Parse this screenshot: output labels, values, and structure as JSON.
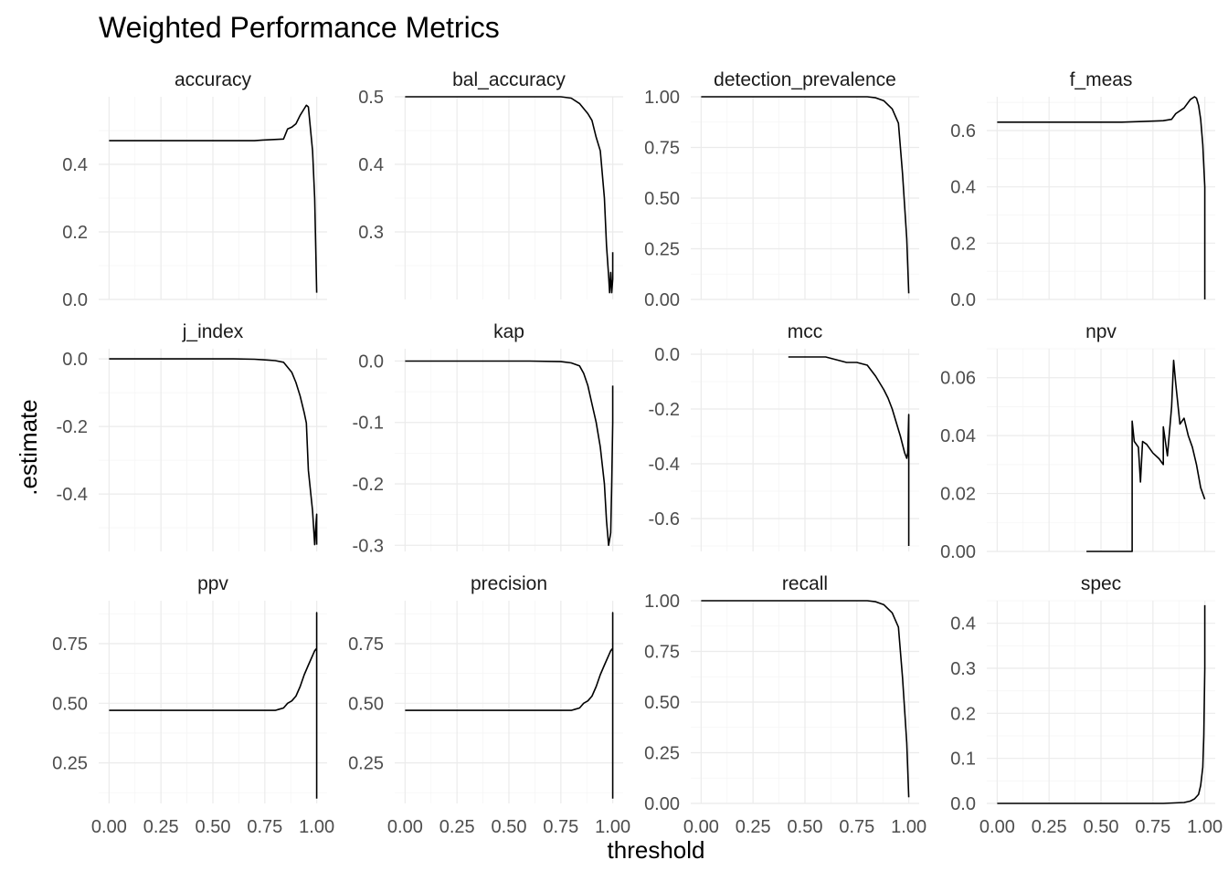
{
  "chart_data": {
    "type": "line",
    "title": "Weighted Performance Metrics",
    "xlabel": "threshold",
    "ylabel": ".estimate",
    "grid": true,
    "legend": "none",
    "x_ticks": [
      "0.00",
      "0.25",
      "0.50",
      "0.75",
      "1.00"
    ],
    "x_tick_values": [
      0,
      0.25,
      0.5,
      0.75,
      1
    ],
    "x_tick_labels_visible_on": [
      "ppv",
      "precision",
      "recall",
      "spec"
    ],
    "panels": [
      {
        "name": "accuracy",
        "ylim": [
          0,
          0.6
        ],
        "y_tick_values": [
          0,
          0.2,
          0.4
        ],
        "y_ticks": [
          "0.0",
          "0.2",
          "0.4"
        ],
        "x": [
          0,
          0.2,
          0.4,
          0.6,
          0.7,
          0.74,
          0.84,
          0.86,
          0.88,
          0.9,
          0.92,
          0.94,
          0.95,
          0.96,
          0.98,
          0.99,
          1.0
        ],
        "y": [
          0.47,
          0.47,
          0.47,
          0.47,
          0.47,
          0.472,
          0.475,
          0.505,
          0.51,
          0.52,
          0.545,
          0.565,
          0.575,
          0.57,
          0.44,
          0.3,
          0.02
        ]
      },
      {
        "name": "bal_accuracy",
        "ylim": [
          0.2,
          0.5
        ],
        "y_tick_values": [
          0.3,
          0.4,
          0.5
        ],
        "y_ticks": [
          "0.3",
          "0.4",
          "0.5"
        ],
        "x": [
          0,
          0.2,
          0.4,
          0.6,
          0.75,
          0.8,
          0.84,
          0.88,
          0.9,
          0.92,
          0.94,
          0.96,
          0.97,
          0.98,
          0.985,
          0.99,
          0.995,
          1.0,
          1.0
        ],
        "y": [
          0.5,
          0.5,
          0.5,
          0.5,
          0.5,
          0.498,
          0.49,
          0.475,
          0.465,
          0.44,
          0.42,
          0.35,
          0.28,
          0.235,
          0.21,
          0.24,
          0.21,
          0.23,
          0.27
        ]
      },
      {
        "name": "detection_prevalence",
        "ylim": [
          0,
          1
        ],
        "y_tick_values": [
          0,
          0.25,
          0.5,
          0.75,
          1
        ],
        "y_ticks": [
          "0.00",
          "0.25",
          "0.50",
          "0.75",
          "1.00"
        ],
        "x": [
          0,
          0.2,
          0.4,
          0.6,
          0.8,
          0.84,
          0.88,
          0.92,
          0.95,
          0.97,
          0.99,
          1.0
        ],
        "y": [
          1.0,
          1.0,
          1.0,
          1.0,
          1.0,
          0.995,
          0.98,
          0.94,
          0.87,
          0.62,
          0.3,
          0.03
        ]
      },
      {
        "name": "f_meas",
        "ylim": [
          0,
          0.72
        ],
        "y_tick_values": [
          0,
          0.2,
          0.4,
          0.6
        ],
        "y_ticks": [
          "0.0",
          "0.2",
          "0.4",
          "0.6"
        ],
        "x": [
          0,
          0.2,
          0.4,
          0.6,
          0.7,
          0.8,
          0.84,
          0.86,
          0.9,
          0.93,
          0.95,
          0.96,
          0.97,
          0.98,
          0.99,
          1.0,
          1.0
        ],
        "y": [
          0.63,
          0.63,
          0.63,
          0.63,
          0.632,
          0.635,
          0.64,
          0.66,
          0.68,
          0.71,
          0.72,
          0.715,
          0.69,
          0.64,
          0.55,
          0.4,
          0.0
        ]
      },
      {
        "name": "j_index",
        "ylim": [
          -0.57,
          0.03
        ],
        "y_tick_values": [
          -0.4,
          -0.2,
          0
        ],
        "y_ticks": [
          "-0.4",
          "-0.2",
          "0.0"
        ],
        "x": [
          0,
          0.2,
          0.4,
          0.6,
          0.7,
          0.75,
          0.8,
          0.84,
          0.88,
          0.9,
          0.92,
          0.94,
          0.95,
          0.96,
          0.98,
          0.99,
          0.995,
          1.0,
          1.0
        ],
        "y": [
          0.0,
          0.0,
          0.0,
          0.0,
          -0.001,
          -0.003,
          -0.005,
          -0.01,
          -0.04,
          -0.07,
          -0.11,
          -0.16,
          -0.19,
          -0.33,
          -0.45,
          -0.55,
          -0.5,
          -0.46,
          -0.55
        ]
      },
      {
        "name": "kap",
        "ylim": [
          -0.31,
          0.02
        ],
        "y_tick_values": [
          -0.3,
          -0.2,
          -0.1,
          0
        ],
        "y_ticks": [
          "-0.3",
          "-0.2",
          "-0.1",
          "0.0"
        ],
        "x": [
          0,
          0.2,
          0.4,
          0.6,
          0.75,
          0.8,
          0.84,
          0.86,
          0.88,
          0.9,
          0.92,
          0.94,
          0.96,
          0.97,
          0.98,
          0.99,
          0.995,
          1.0,
          1.0
        ],
        "y": [
          0.0,
          0.0,
          0.0,
          0.0,
          -0.001,
          -0.003,
          -0.008,
          -0.02,
          -0.04,
          -0.07,
          -0.1,
          -0.14,
          -0.2,
          -0.26,
          -0.3,
          -0.28,
          -0.2,
          -0.1,
          -0.04
        ]
      },
      {
        "name": "mcc",
        "ylim": [
          -0.72,
          0.02
        ],
        "y_tick_values": [
          -0.6,
          -0.4,
          -0.2,
          0
        ],
        "y_ticks": [
          "-0.6",
          "-0.4",
          "-0.2",
          "0.0"
        ],
        "x": [
          0.42,
          0.5,
          0.6,
          0.65,
          0.7,
          0.75,
          0.8,
          0.84,
          0.88,
          0.9,
          0.92,
          0.94,
          0.96,
          0.97,
          0.98,
          0.99,
          0.995,
          1.0,
          1.0,
          1.0
        ],
        "y": [
          -0.01,
          -0.01,
          -0.01,
          -0.02,
          -0.03,
          -0.03,
          -0.04,
          -0.08,
          -0.13,
          -0.16,
          -0.2,
          -0.25,
          -0.3,
          -0.33,
          -0.36,
          -0.38,
          -0.36,
          -0.22,
          -0.4,
          -0.7
        ]
      },
      {
        "name": "npv",
        "ylim": [
          0,
          0.07
        ],
        "y_tick_values": [
          0,
          0.02,
          0.04,
          0.06
        ],
        "y_ticks": [
          "0.00",
          "0.02",
          "0.04",
          "0.06"
        ],
        "x": [
          0.43,
          0.5,
          0.6,
          0.65,
          0.65,
          0.66,
          0.68,
          0.69,
          0.7,
          0.72,
          0.75,
          0.78,
          0.8,
          0.8,
          0.82,
          0.84,
          0.85,
          0.86,
          0.88,
          0.9,
          0.92,
          0.94,
          0.96,
          0.98,
          1.0
        ],
        "y": [
          0.0,
          0.0,
          0.0,
          0.0,
          0.045,
          0.038,
          0.036,
          0.024,
          0.038,
          0.037,
          0.034,
          0.032,
          0.03,
          0.043,
          0.033,
          0.05,
          0.066,
          0.058,
          0.044,
          0.046,
          0.04,
          0.036,
          0.03,
          0.022,
          0.018
        ]
      },
      {
        "name": "ppv",
        "ylim": [
          0.08,
          0.93
        ],
        "y_tick_values": [
          0.25,
          0.5,
          0.75
        ],
        "y_ticks": [
          "0.25",
          "0.50",
          "0.75"
        ],
        "x": [
          0,
          0.2,
          0.4,
          0.6,
          0.7,
          0.8,
          0.82,
          0.84,
          0.86,
          0.88,
          0.9,
          0.92,
          0.94,
          0.96,
          0.98,
          0.99,
          1.0,
          1.0,
          1.0
        ],
        "y": [
          0.47,
          0.47,
          0.47,
          0.47,
          0.47,
          0.47,
          0.475,
          0.48,
          0.5,
          0.51,
          0.53,
          0.57,
          0.62,
          0.66,
          0.7,
          0.72,
          0.73,
          0.88,
          0.1
        ]
      },
      {
        "name": "precision",
        "ylim": [
          0.08,
          0.93
        ],
        "y_tick_values": [
          0.25,
          0.5,
          0.75
        ],
        "y_ticks": [
          "0.25",
          "0.50",
          "0.75"
        ],
        "x": [
          0,
          0.2,
          0.4,
          0.6,
          0.7,
          0.8,
          0.82,
          0.84,
          0.86,
          0.88,
          0.9,
          0.92,
          0.94,
          0.96,
          0.98,
          0.99,
          1.0,
          1.0,
          1.0
        ],
        "y": [
          0.47,
          0.47,
          0.47,
          0.47,
          0.47,
          0.47,
          0.475,
          0.48,
          0.5,
          0.51,
          0.53,
          0.57,
          0.62,
          0.66,
          0.7,
          0.72,
          0.73,
          0.88,
          0.1
        ]
      },
      {
        "name": "recall",
        "ylim": [
          0,
          1
        ],
        "y_tick_values": [
          0,
          0.25,
          0.5,
          0.75,
          1
        ],
        "y_ticks": [
          "0.00",
          "0.25",
          "0.50",
          "0.75",
          "1.00"
        ],
        "x": [
          0,
          0.2,
          0.4,
          0.6,
          0.8,
          0.84,
          0.88,
          0.92,
          0.95,
          0.97,
          0.99,
          1.0
        ],
        "y": [
          1.0,
          1.0,
          1.0,
          1.0,
          1.0,
          0.995,
          0.98,
          0.94,
          0.87,
          0.62,
          0.3,
          0.03
        ]
      },
      {
        "name": "spec",
        "ylim": [
          0,
          0.45
        ],
        "y_tick_values": [
          0,
          0.1,
          0.2,
          0.3,
          0.4
        ],
        "y_ticks": [
          "0.0",
          "0.1",
          "0.2",
          "0.3",
          "0.4"
        ],
        "x": [
          0,
          0.2,
          0.4,
          0.6,
          0.8,
          0.9,
          0.93,
          0.95,
          0.97,
          0.98,
          0.99,
          0.995,
          1.0,
          1.0
        ],
        "y": [
          0.0,
          0.0,
          0.0,
          0.0,
          0.0,
          0.002,
          0.005,
          0.01,
          0.02,
          0.04,
          0.08,
          0.15,
          0.3,
          0.44
        ]
      }
    ]
  }
}
